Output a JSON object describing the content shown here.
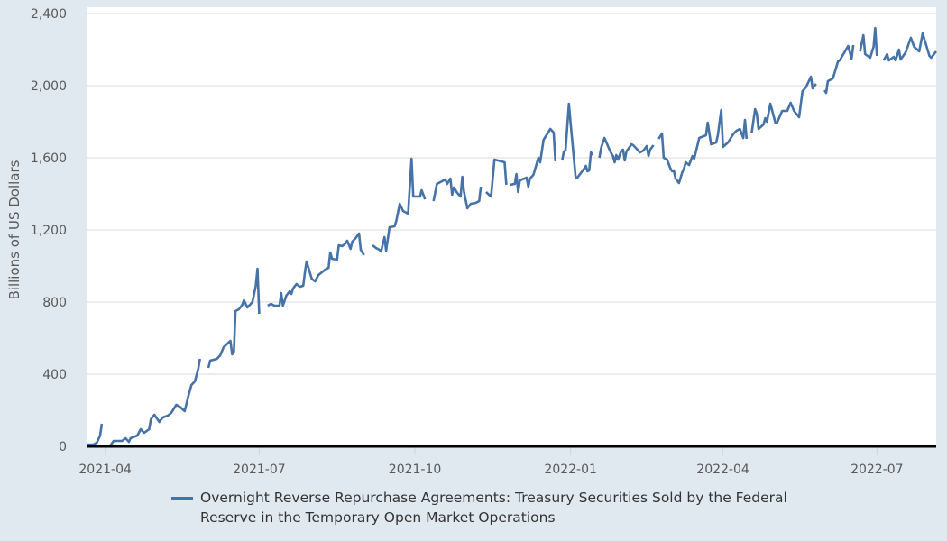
{
  "chart_data": {
    "type": "line",
    "title": "",
    "xlabel": "",
    "ylabel": "Billions of US Dollars",
    "ylim": [
      0,
      2400
    ],
    "yticks": [
      "0",
      "400",
      "800",
      "1,200",
      "1,600",
      "2,000",
      "2,400"
    ],
    "ytick_values": [
      0,
      400,
      800,
      1200,
      1600,
      2000,
      2400
    ],
    "xlim": [
      "2021-03-21",
      "2022-08-05"
    ],
    "xticks": [
      "2021-04",
      "2021-07",
      "2021-10",
      "2022-01",
      "2022-04",
      "2022-07"
    ],
    "xtick_dates": [
      "2021-04-01",
      "2021-07-01",
      "2021-10-01",
      "2022-01-01",
      "2022-04-01",
      "2022-07-01"
    ],
    "grid": "horizontal",
    "legend_position": "bottom",
    "colors": {
      "series": "#4572a7",
      "background": "#e1e9f0",
      "plot": "#ffffff",
      "grid": "#e6e6e6"
    },
    "series": [
      {
        "name": "Overnight Reverse Repurchase Agreements: Treasury Securities Sold by the Federal Reserve in the Temporary Open Market Operations",
        "points": [
          [
            "2021-03-21",
            10
          ],
          [
            "2021-03-25",
            10
          ],
          [
            "2021-03-27",
            20
          ],
          [
            "2021-03-29",
            60
          ],
          [
            "2021-03-30",
            125
          ],
          [
            "2021-03-31",
            null
          ],
          [
            "2021-04-04",
            5
          ],
          [
            "2021-04-06",
            30
          ],
          [
            "2021-04-11",
            30
          ],
          [
            "2021-04-13",
            45
          ],
          [
            "2021-04-15",
            25
          ],
          [
            "2021-04-16",
            45
          ],
          [
            "2021-04-20",
            60
          ],
          [
            "2021-04-22",
            95
          ],
          [
            "2021-04-24",
            75
          ],
          [
            "2021-04-27",
            95
          ],
          [
            "2021-04-28",
            150
          ],
          [
            "2021-04-30",
            175
          ],
          [
            "2021-05-03",
            135
          ],
          [
            "2021-05-05",
            160
          ],
          [
            "2021-05-08",
            170
          ],
          [
            "2021-05-10",
            185
          ],
          [
            "2021-05-13",
            230
          ],
          [
            "2021-05-15",
            220
          ],
          [
            "2021-05-18",
            195
          ],
          [
            "2021-05-20",
            275
          ],
          [
            "2021-05-22",
            340
          ],
          [
            "2021-05-24",
            360
          ],
          [
            "2021-05-26",
            430
          ],
          [
            "2021-05-27",
            485
          ],
          [
            "2021-05-28",
            null
          ],
          [
            "2021-06-01",
            435
          ],
          [
            "2021-06-02",
            475
          ],
          [
            "2021-06-06",
            485
          ],
          [
            "2021-06-08",
            505
          ],
          [
            "2021-06-10",
            550
          ],
          [
            "2021-06-14",
            585
          ],
          [
            "2021-06-15",
            510
          ],
          [
            "2021-06-16",
            520
          ],
          [
            "2021-06-17",
            750
          ],
          [
            "2021-06-19",
            760
          ],
          [
            "2021-06-21",
            785
          ],
          [
            "2021-06-22",
            810
          ],
          [
            "2021-06-24",
            770
          ],
          [
            "2021-06-27",
            800
          ],
          [
            "2021-06-29",
            890
          ],
          [
            "2021-06-30",
            985
          ],
          [
            "2021-07-01",
            735
          ],
          [
            "2021-07-03",
            null
          ],
          [
            "2021-07-06",
            780
          ],
          [
            "2021-07-08",
            790
          ],
          [
            "2021-07-10",
            780
          ],
          [
            "2021-07-13",
            780
          ],
          [
            "2021-07-14",
            850
          ],
          [
            "2021-07-15",
            780
          ],
          [
            "2021-07-17",
            835
          ],
          [
            "2021-07-19",
            860
          ],
          [
            "2021-07-20",
            845
          ],
          [
            "2021-07-21",
            875
          ],
          [
            "2021-07-23",
            900
          ],
          [
            "2021-07-25",
            885
          ],
          [
            "2021-07-27",
            890
          ],
          [
            "2021-07-28",
            965
          ],
          [
            "2021-07-29",
            1025
          ],
          [
            "2021-08-01",
            930
          ],
          [
            "2021-08-03",
            915
          ],
          [
            "2021-08-05",
            950
          ],
          [
            "2021-08-09",
            980
          ],
          [
            "2021-08-11",
            990
          ],
          [
            "2021-08-12",
            1075
          ],
          [
            "2021-08-13",
            1040
          ],
          [
            "2021-08-16",
            1035
          ],
          [
            "2021-08-17",
            1115
          ],
          [
            "2021-08-19",
            1110
          ],
          [
            "2021-08-21",
            1125
          ],
          [
            "2021-08-22",
            1140
          ],
          [
            "2021-08-24",
            1095
          ],
          [
            "2021-08-25",
            1135
          ],
          [
            "2021-08-27",
            1155
          ],
          [
            "2021-08-29",
            1180
          ],
          [
            "2021-08-30",
            1090
          ],
          [
            "2021-09-01",
            1060
          ],
          [
            "2021-09-04",
            null
          ],
          [
            "2021-09-06",
            1115
          ],
          [
            "2021-09-08",
            1100
          ],
          [
            "2021-09-10",
            1090
          ],
          [
            "2021-09-11",
            1080
          ],
          [
            "2021-09-13",
            1160
          ],
          [
            "2021-09-14",
            1085
          ],
          [
            "2021-09-16",
            1215
          ],
          [
            "2021-09-19",
            1220
          ],
          [
            "2021-09-20",
            1250
          ],
          [
            "2021-09-22",
            1345
          ],
          [
            "2021-09-24",
            1305
          ],
          [
            "2021-09-27",
            1290
          ],
          [
            "2021-09-29",
            1595
          ],
          [
            "2021-09-30",
            1385
          ],
          [
            "2021-10-04",
            1385
          ],
          [
            "2021-10-05",
            1420
          ],
          [
            "2021-10-07",
            1370
          ],
          [
            "2021-10-09",
            null
          ],
          [
            "2021-10-12",
            1360
          ],
          [
            "2021-10-14",
            1455
          ],
          [
            "2021-10-15",
            1460
          ],
          [
            "2021-10-19",
            1480
          ],
          [
            "2021-10-20",
            1455
          ],
          [
            "2021-10-22",
            1485
          ],
          [
            "2021-10-23",
            1395
          ],
          [
            "2021-10-24",
            1435
          ],
          [
            "2021-10-26",
            1405
          ],
          [
            "2021-10-28",
            1385
          ],
          [
            "2021-10-29",
            1495
          ],
          [
            "2021-10-30",
            1410
          ],
          [
            "2021-11-01",
            1320
          ],
          [
            "2021-11-03",
            1345
          ],
          [
            "2021-11-06",
            1350
          ],
          [
            "2021-11-08",
            1360
          ],
          [
            "2021-11-09",
            1440
          ],
          [
            "2021-11-11",
            null
          ],
          [
            "2021-11-12",
            1410
          ],
          [
            "2021-11-15",
            1385
          ],
          [
            "2021-11-17",
            1590
          ],
          [
            "2021-11-23",
            1575
          ],
          [
            "2021-11-24",
            1450
          ],
          [
            "2021-11-25",
            null
          ],
          [
            "2021-11-26",
            1450
          ],
          [
            "2021-11-29",
            1455
          ],
          [
            "2021-11-30",
            1510
          ],
          [
            "2021-12-01",
            1410
          ],
          [
            "2021-12-02",
            1475
          ],
          [
            "2021-12-06",
            1490
          ],
          [
            "2021-12-07",
            1440
          ],
          [
            "2021-12-08",
            1485
          ],
          [
            "2021-12-10",
            1505
          ],
          [
            "2021-12-13",
            1600
          ],
          [
            "2021-12-14",
            1575
          ],
          [
            "2021-12-16",
            1700
          ],
          [
            "2021-12-20",
            1760
          ],
          [
            "2021-12-22",
            1740
          ],
          [
            "2021-12-23",
            1580
          ],
          [
            "2021-12-25",
            null
          ],
          [
            "2021-12-27",
            1585
          ],
          [
            "2021-12-28",
            1635
          ],
          [
            "2021-12-29",
            1640
          ],
          [
            "2021-12-31",
            1900
          ],
          [
            "2022-01-01",
            1790
          ],
          [
            "2022-01-04",
            1490
          ],
          [
            "2022-01-05",
            1490
          ],
          [
            "2022-01-09",
            1540
          ],
          [
            "2022-01-10",
            1555
          ],
          [
            "2022-01-11",
            1525
          ],
          [
            "2022-01-12",
            1530
          ],
          [
            "2022-01-13",
            1630
          ],
          [
            "2022-01-14",
            1615
          ],
          [
            "2022-01-17",
            null
          ],
          [
            "2022-01-18",
            1600
          ],
          [
            "2022-01-19",
            1655
          ],
          [
            "2022-01-21",
            1710
          ],
          [
            "2022-01-24",
            1645
          ],
          [
            "2022-01-25",
            1625
          ],
          [
            "2022-01-26",
            1610
          ],
          [
            "2022-01-27",
            1575
          ],
          [
            "2022-01-28",
            1615
          ],
          [
            "2022-01-29",
            1590
          ],
          [
            "2022-01-31",
            1640
          ],
          [
            "2022-02-01",
            1645
          ],
          [
            "2022-02-02",
            1585
          ],
          [
            "2022-02-03",
            1635
          ],
          [
            "2022-02-06",
            1675
          ],
          [
            "2022-02-07",
            1670
          ],
          [
            "2022-02-11",
            1630
          ],
          [
            "2022-02-13",
            1640
          ],
          [
            "2022-02-15",
            1665
          ],
          [
            "2022-02-16",
            1610
          ],
          [
            "2022-02-17",
            1645
          ],
          [
            "2022-02-19",
            1670
          ],
          [
            "2022-02-21",
            null
          ],
          [
            "2022-02-22",
            1705
          ],
          [
            "2022-02-24",
            1735
          ],
          [
            "2022-02-25",
            1600
          ],
          [
            "2022-02-27",
            1590
          ],
          [
            "2022-03-01",
            1540
          ],
          [
            "2022-03-02",
            1525
          ],
          [
            "2022-03-03",
            1530
          ],
          [
            "2022-03-04",
            1485
          ],
          [
            "2022-03-06",
            1460
          ],
          [
            "2022-03-08",
            1520
          ],
          [
            "2022-03-09",
            1540
          ],
          [
            "2022-03-10",
            1575
          ],
          [
            "2022-03-12",
            1560
          ],
          [
            "2022-03-14",
            1610
          ],
          [
            "2022-03-15",
            1595
          ],
          [
            "2022-03-18",
            1710
          ],
          [
            "2022-03-22",
            1725
          ],
          [
            "2022-03-23",
            1795
          ],
          [
            "2022-03-25",
            1675
          ],
          [
            "2022-03-28",
            1685
          ],
          [
            "2022-03-29",
            1725
          ],
          [
            "2022-03-31",
            1865
          ],
          [
            "2022-04-01",
            1660
          ],
          [
            "2022-04-04",
            1685
          ],
          [
            "2022-04-07",
            1730
          ],
          [
            "2022-04-09",
            1750
          ],
          [
            "2022-04-11",
            1760
          ],
          [
            "2022-04-13",
            1710
          ],
          [
            "2022-04-14",
            1810
          ],
          [
            "2022-04-15",
            1705
          ],
          [
            "2022-04-17",
            null
          ],
          [
            "2022-04-18",
            1740
          ],
          [
            "2022-04-20",
            1870
          ],
          [
            "2022-04-21",
            1845
          ],
          [
            "2022-04-22",
            1760
          ],
          [
            "2022-04-25",
            1785
          ],
          [
            "2022-04-26",
            1820
          ],
          [
            "2022-04-27",
            1800
          ],
          [
            "2022-04-29",
            1900
          ],
          [
            "2022-05-02",
            1795
          ],
          [
            "2022-05-03",
            1795
          ],
          [
            "2022-05-06",
            1860
          ],
          [
            "2022-05-09",
            1860
          ],
          [
            "2022-05-11",
            1905
          ],
          [
            "2022-05-13",
            1860
          ],
          [
            "2022-05-16",
            1825
          ],
          [
            "2022-05-18",
            1970
          ],
          [
            "2022-05-20",
            1990
          ],
          [
            "2022-05-23",
            2050
          ],
          [
            "2022-05-24",
            1985
          ],
          [
            "2022-05-26",
            2010
          ],
          [
            "2022-05-28",
            null
          ],
          [
            "2022-05-31",
            1975
          ],
          [
            "2022-06-01",
            1960
          ],
          [
            "2022-06-02",
            2025
          ],
          [
            "2022-06-05",
            2040
          ],
          [
            "2022-06-08",
            2135
          ],
          [
            "2022-06-09",
            2140
          ],
          [
            "2022-06-14",
            2220
          ],
          [
            "2022-06-16",
            2150
          ],
          [
            "2022-06-17",
            2225
          ],
          [
            "2022-06-19",
            null
          ],
          [
            "2022-06-21",
            2190
          ],
          [
            "2022-06-23",
            2280
          ],
          [
            "2022-06-24",
            2175
          ],
          [
            "2022-06-27",
            2155
          ],
          [
            "2022-06-29",
            2215
          ],
          [
            "2022-06-30",
            2320
          ],
          [
            "2022-07-01",
            2165
          ],
          [
            "2022-07-03",
            null
          ],
          [
            "2022-07-05",
            2140
          ],
          [
            "2022-07-07",
            2175
          ],
          [
            "2022-07-08",
            2140
          ],
          [
            "2022-07-11",
            2160
          ],
          [
            "2022-07-12",
            2140
          ],
          [
            "2022-07-14",
            2200
          ],
          [
            "2022-07-15",
            2145
          ],
          [
            "2022-07-18",
            2185
          ],
          [
            "2022-07-21",
            2265
          ],
          [
            "2022-07-23",
            2215
          ],
          [
            "2022-07-26",
            2190
          ],
          [
            "2022-07-28",
            2290
          ],
          [
            "2022-08-01",
            2165
          ],
          [
            "2022-08-02",
            2155
          ],
          [
            "2022-08-05",
            2190
          ]
        ]
      }
    ]
  }
}
